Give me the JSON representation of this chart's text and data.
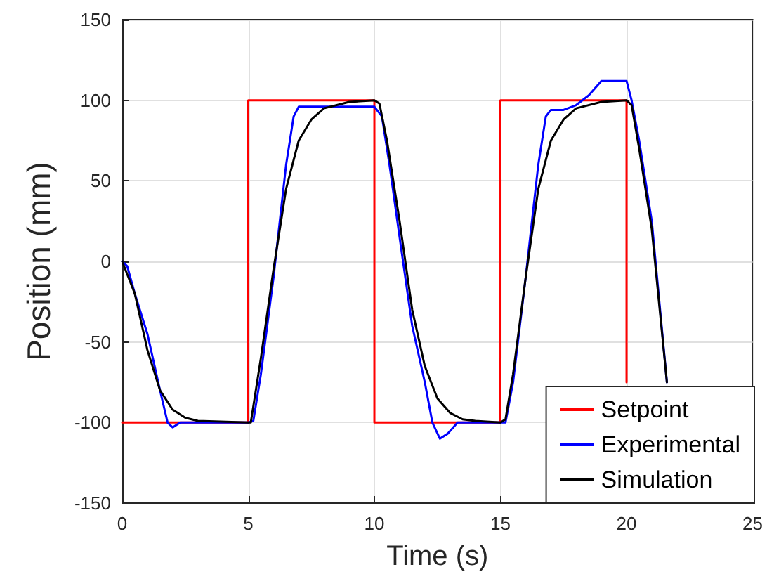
{
  "chart_data": {
    "type": "line",
    "xlabel": "Time (s)",
    "ylabel": "Position (mm)",
    "xlim": [
      0,
      25
    ],
    "ylim": [
      -150,
      150
    ],
    "xticks": [
      0,
      5,
      10,
      15,
      20,
      25
    ],
    "yticks": [
      -150,
      -100,
      -50,
      0,
      50,
      100,
      150
    ],
    "grid": true,
    "legend": "bottom right",
    "marker": "none",
    "line_style": "solid",
    "series": [
      {
        "name": "Setpoint",
        "color": "#ff0000",
        "x": [
          0,
          5,
          5,
          10,
          10,
          15,
          15,
          20,
          20
        ],
        "values": [
          -100,
          -100,
          100,
          100,
          -100,
          -100,
          100,
          100,
          -75
        ]
      },
      {
        "name": "Experimental",
        "color": "#0000ff",
        "x": [
          0,
          0.2,
          0.5,
          1,
          1.5,
          1.8,
          2,
          2.3,
          3,
          5,
          5.2,
          5.5,
          6,
          6.5,
          6.8,
          7,
          8,
          9,
          10,
          10.3,
          10.6,
          11,
          11.5,
          12,
          12.3,
          12.6,
          12.9,
          13.3,
          14,
          15,
          15.2,
          15.5,
          16,
          16.5,
          16.8,
          17,
          17.5,
          18,
          18.5,
          19,
          19.8,
          20,
          20.2,
          20.5,
          21,
          21.6
        ],
        "values": [
          0,
          -3,
          -20,
          -45,
          -80,
          -100,
          -103,
          -100,
          -100,
          -100,
          -99,
          -70,
          -10,
          60,
          90,
          96,
          96,
          96,
          96,
          90,
          60,
          15,
          -40,
          -75,
          -100,
          -110,
          -107,
          -100,
          -100,
          -100,
          -100,
          -75,
          -10,
          60,
          90,
          94,
          94,
          97,
          103,
          112,
          112,
          112,
          100,
          75,
          25,
          -75
        ]
      },
      {
        "name": "Simulation",
        "color": "#000000",
        "x": [
          0,
          0.5,
          1,
          1.5,
          2,
          2.5,
          3,
          5,
          5.1,
          5.5,
          6,
          6.5,
          7,
          7.5,
          8,
          9,
          10,
          10.2,
          10.5,
          11,
          11.5,
          12,
          12.5,
          13,
          13.5,
          14,
          15,
          15.2,
          15.5,
          16,
          16.5,
          17,
          17.5,
          18,
          19,
          20,
          20.2,
          20.5,
          21,
          21.6
        ],
        "values": [
          0,
          -20,
          -55,
          -80,
          -92,
          -97,
          -99,
          -100,
          -100,
          -60,
          -5,
          45,
          75,
          88,
          95,
          99,
          100,
          98,
          75,
          25,
          -30,
          -65,
          -85,
          -94,
          -98,
          -99,
          -100,
          -98,
          -70,
          -10,
          45,
          75,
          88,
          95,
          99,
          100,
          97,
          70,
          20,
          -75
        ]
      }
    ]
  }
}
